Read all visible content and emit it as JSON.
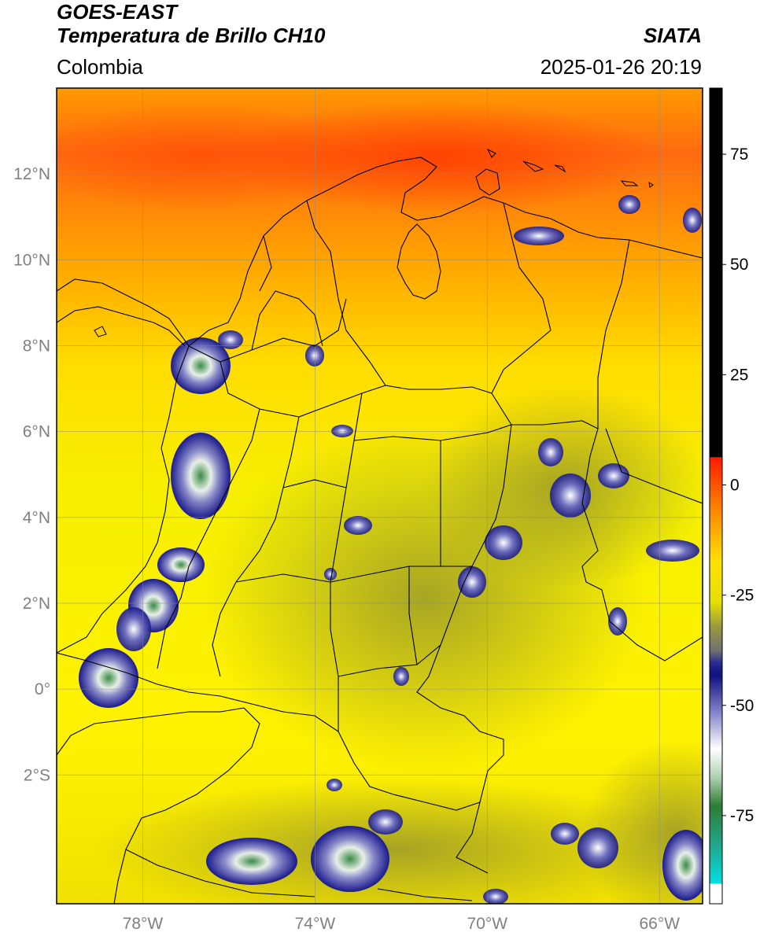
{
  "header": {
    "satellite": "GOES-EAST",
    "product": "Temperatura de Brillo CH10",
    "region": "Colombia",
    "organization": "SIATA",
    "datetime": "2025-01-26 20:19"
  },
  "map": {
    "lon_range": [
      -80,
      -65
    ],
    "lat_range": [
      -5,
      14
    ],
    "lat_labels": [
      {
        "lat": 12,
        "label": "12°N"
      },
      {
        "lat": 10,
        "label": "10°N"
      },
      {
        "lat": 8,
        "label": "8°N"
      },
      {
        "lat": 6,
        "label": "6°N"
      },
      {
        "lat": 4,
        "label": "4°N"
      },
      {
        "lat": 2,
        "label": "2°N"
      },
      {
        "lat": 0,
        "label": "0°"
      },
      {
        "lat": -2,
        "label": "2°S"
      }
    ],
    "lon_labels": [
      {
        "lon": -78,
        "label": "78°W"
      },
      {
        "lon": -74,
        "label": "74°W"
      },
      {
        "lon": -70,
        "label": "70°W"
      },
      {
        "lon": -66,
        "label": "66°W"
      }
    ],
    "colors": {
      "warm": "#ff3c00",
      "orange": "#ffa500",
      "yellow": "#ffee00",
      "olive": "#8a8a2a",
      "navy": "#1a1a8c",
      "white": "#ffffff",
      "green": "#2e7d32",
      "cyan": "#00d0d0"
    }
  },
  "colorbar": {
    "range": [
      -95,
      90
    ],
    "ticks": [
      {
        "value": 75,
        "label": "75"
      },
      {
        "value": 50,
        "label": "50"
      },
      {
        "value": 25,
        "label": "25"
      },
      {
        "value": 0,
        "label": "0"
      },
      {
        "value": -25,
        "label": "-25"
      },
      {
        "value": -50,
        "label": "-50"
      },
      {
        "value": -75,
        "label": "-75"
      }
    ]
  }
}
